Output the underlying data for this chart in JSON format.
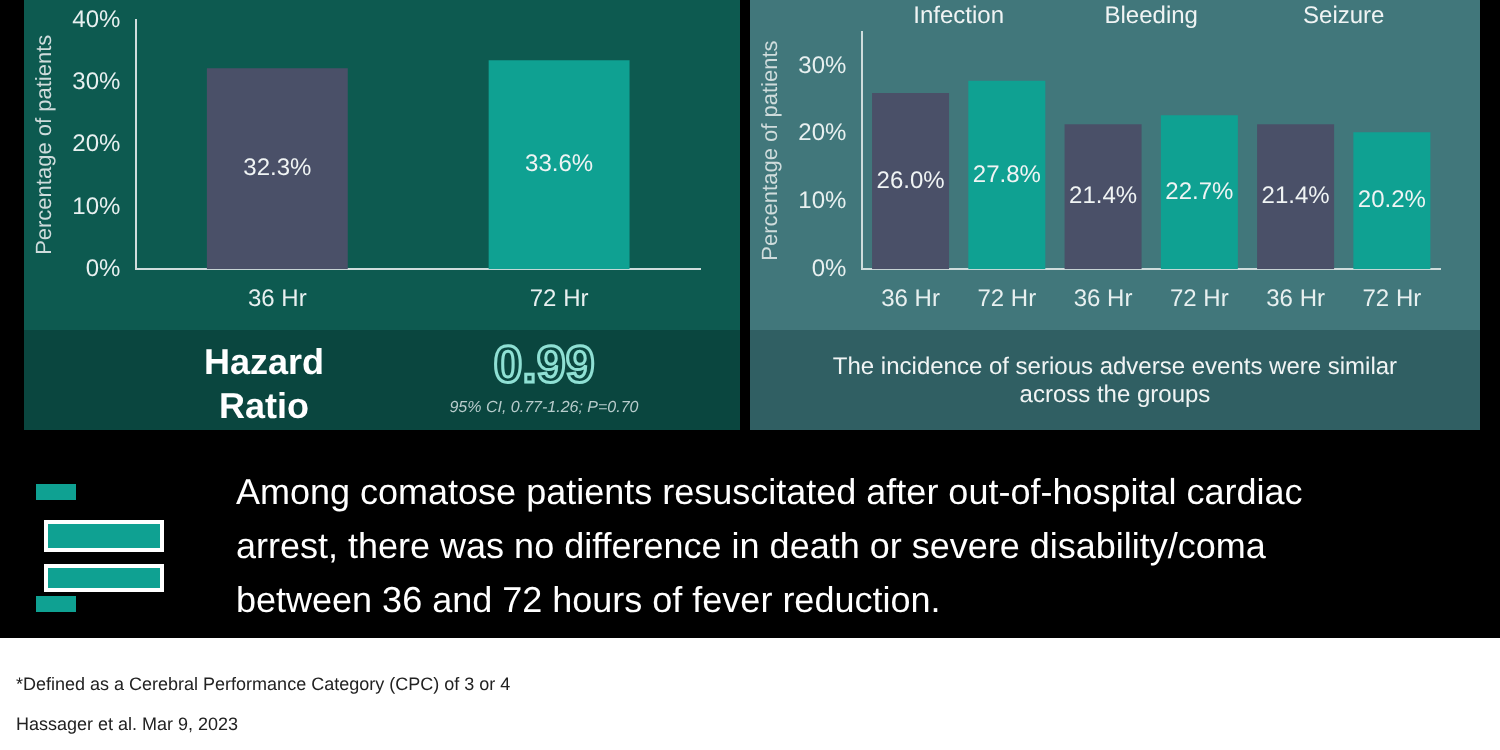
{
  "chart_data": [
    {
      "type": "bar",
      "ylabel": "Percentage of patients",
      "categories": [
        "36 Hr",
        "72 Hr"
      ],
      "values": [
        32.3,
        33.6
      ],
      "colors": [
        "#4a5068",
        "#0fa192"
      ],
      "value_labels": [
        "32.3%",
        "33.6%"
      ],
      "ylim": [
        0,
        40
      ],
      "yticks": [
        {
          "value": 0,
          "label": "0%"
        },
        {
          "value": 10,
          "label": "10%"
        },
        {
          "value": 20,
          "label": "20%"
        },
        {
          "value": 30,
          "label": "30%"
        },
        {
          "value": 40,
          "label": "40%"
        }
      ],
      "grid": false,
      "legend": false,
      "annotations": [
        "Hazard Ratio",
        "0.99",
        "95% CI, 0.77-1.26; P=0.70"
      ]
    },
    {
      "type": "bar",
      "ylabel": "Percentage of patients",
      "categories": [
        "36 Hr",
        "72 Hr",
        "36 Hr",
        "72 Hr",
        "36 Hr",
        "72 Hr"
      ],
      "values": [
        26.0,
        27.8,
        21.4,
        22.7,
        21.4,
        20.2
      ],
      "colors": [
        "#4a5068",
        "#0fa192",
        "#4a5068",
        "#0fa192",
        "#4a5068",
        "#0fa192"
      ],
      "value_labels": [
        "26.0%",
        "27.8%",
        "21.4%",
        "22.7%",
        "21.4%",
        "20.2%"
      ],
      "ylim": [
        0,
        35
      ],
      "yticks": [
        {
          "value": 0,
          "label": "0%"
        },
        {
          "value": 10,
          "label": "10%"
        },
        {
          "value": 20,
          "label": "20%"
        },
        {
          "value": 30,
          "label": "30%"
        }
      ],
      "grid": false,
      "legend": false,
      "annotations": [
        "Infection",
        "Bleeding",
        "Seizure",
        "The incidence of serious adverse events were similar across the groups"
      ]
    },
    {
      "type": "other",
      "annotations": [
        "Among comatose patients resuscitated after out-of-hospital cardiac arrest, there was no difference in death or severe disability/coma between 36 and 72 hours of fever reduction.",
        "*Defined as a Cerebral Performance Category (CPC) of 3 or 4",
        "Hassager et al. Mar 9, 2023"
      ]
    }
  ]
}
